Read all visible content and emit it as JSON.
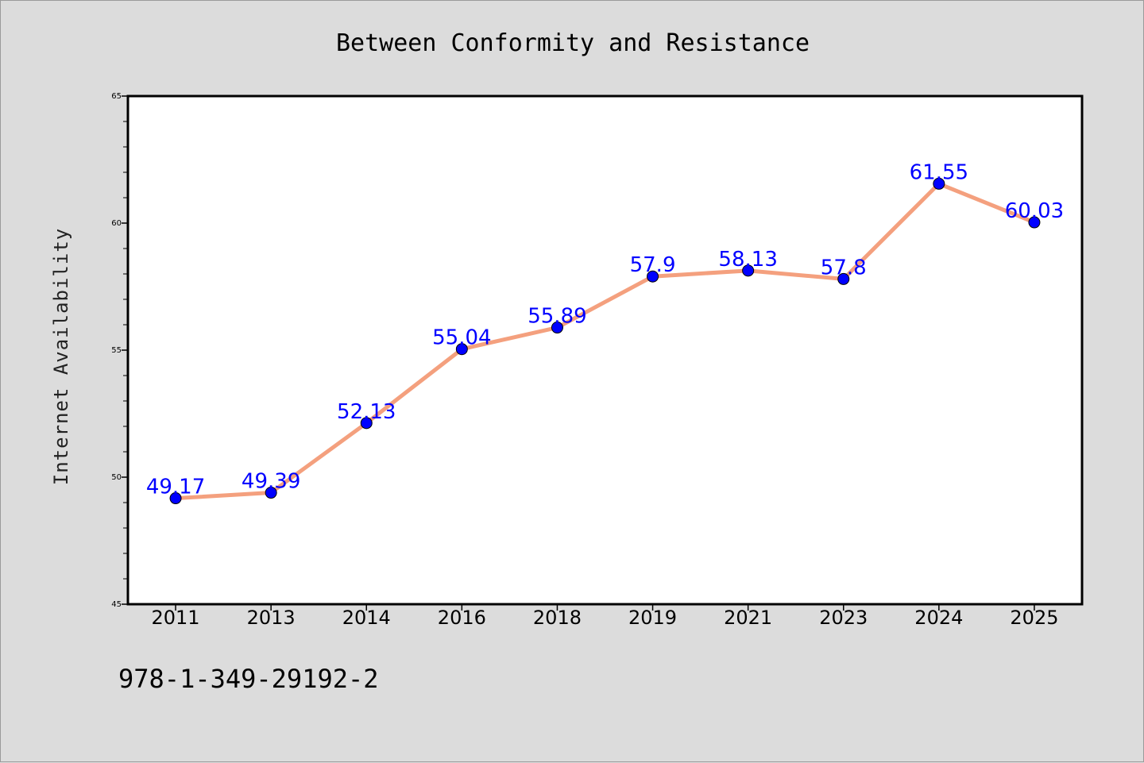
{
  "chart_data": {
    "type": "line",
    "title": "Between Conformity and Resistance",
    "xlabel": "",
    "ylabel": "Internet Availability",
    "categories": [
      "2011",
      "2013",
      "2014",
      "2016",
      "2018",
      "2019",
      "2021",
      "2023",
      "2024",
      "2025"
    ],
    "values": [
      49.17,
      49.39,
      52.13,
      55.04,
      55.89,
      57.9,
      58.13,
      57.8,
      61.55,
      60.03
    ],
    "data_labels": [
      "49.17",
      "49.39",
      "52.13",
      "55.04",
      "55.89",
      "57.9",
      "58.13",
      "57.8",
      "61.55",
      "60.03"
    ],
    "ylim": [
      45,
      65
    ],
    "yticks": [
      45,
      50,
      55,
      60,
      65
    ],
    "grid": false,
    "line_color": "#f4a07e",
    "marker_color": "#0000ff",
    "label_color": "#0000ff"
  },
  "footer": {
    "isbn": "978-1-349-29192-2"
  }
}
